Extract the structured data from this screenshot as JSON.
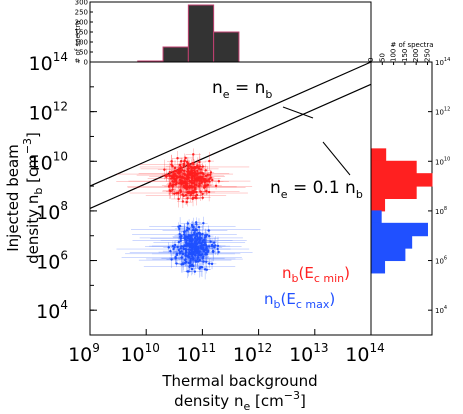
{
  "chart_data": {
    "type": "scatter",
    "xlabel_line1": "Thermal background",
    "xlabel_line2_main": "density n",
    "xlabel_line2_sub": "e",
    "xlabel_line2_unit": "[cm",
    "xlabel_line2_exp": "−3",
    "xlabel_line2_close": "]",
    "ylabel_line1": "Injected beam",
    "ylabel_line2_main": "density n",
    "ylabel_line2_sub": "b",
    "ylabel_line2_unit": "[cm",
    "ylabel_line2_exp": "−3",
    "ylabel_line2_close": "]",
    "x_log": true,
    "y_log": true,
    "xlim": [
      1000000000.0,
      100000000000000.0
    ],
    "ylim": [
      1000.0,
      100000000000000.0
    ],
    "x_ticks": [
      {
        "base": "10",
        "exp": "9",
        "v": 9
      },
      {
        "base": "10",
        "exp": "10",
        "v": 10
      },
      {
        "base": "10",
        "exp": "11",
        "v": 11
      },
      {
        "base": "10",
        "exp": "12",
        "v": 12
      },
      {
        "base": "10",
        "exp": "13",
        "v": 13
      },
      {
        "base": "10",
        "exp": "14",
        "v": 14
      }
    ],
    "y_ticks": [
      {
        "base": "10",
        "exp": "4",
        "v": 4
      },
      {
        "base": "10",
        "exp": "6",
        "v": 6
      },
      {
        "base": "10",
        "exp": "8",
        "v": 8
      },
      {
        "base": "10",
        "exp": "10",
        "v": 10
      },
      {
        "base": "10",
        "exp": "12",
        "v": 12
      },
      {
        "base": "10",
        "exp": "14",
        "v": 14
      }
    ],
    "right_y_ticks": [
      {
        "base": "10",
        "exp": "4",
        "v": 4
      },
      {
        "base": "10",
        "exp": "6",
        "v": 6
      },
      {
        "base": "10",
        "exp": "8",
        "v": 8
      },
      {
        "base": "10",
        "exp": "10",
        "v": 10
      },
      {
        "base": "10",
        "exp": "12",
        "v": 12
      },
      {
        "base": "10",
        "exp": "14",
        "v": 14
      }
    ],
    "reference_lines": [
      {
        "label_main": "n",
        "label_sub1": "e",
        "label_mid": " = n",
        "label_sub2": "b",
        "ratio": 1
      },
      {
        "label_main": "n",
        "label_sub1": "e",
        "label_mid": " = 0.1 n",
        "label_sub2": "b",
        "ratio": 0.1
      }
    ],
    "series": [
      {
        "name_main": "n",
        "name_sub": "b",
        "name_paren": "(E",
        "name_psub": "c min",
        "name_close": ")",
        "color": "#ff2020",
        "cloud": {
          "x": [
            10.0,
            11.5
          ],
          "y": [
            7.8,
            10.7
          ],
          "count": 300
        }
      },
      {
        "name_main": "n",
        "name_sub": "b",
        "name_paren": "(E",
        "name_psub": "c max",
        "name_close": ")",
        "color": "#2050ff",
        "cloud": {
          "x": [
            10.2,
            11.5
          ],
          "y": [
            4.8,
            8.2
          ],
          "count": 300
        }
      }
    ],
    "top_histogram": {
      "ylabel": "# of spectra",
      "ticks": [
        "0",
        "50",
        "100",
        "150",
        "200",
        "250",
        "300"
      ],
      "ymax": 300,
      "color": "#333333",
      "bins": [
        {
          "x0": 9.85,
          "x1": 10.3,
          "count": 5
        },
        {
          "x0": 10.3,
          "x1": 10.75,
          "count": 75
        },
        {
          "x0": 10.75,
          "x1": 11.2,
          "count": 285
        },
        {
          "x0": 11.2,
          "x1": 11.65,
          "count": 150
        }
      ]
    },
    "right_histogram": {
      "xlabel": "# of spectra",
      "ticks": [
        "0",
        "50",
        "100",
        "150",
        "200",
        "250"
      ],
      "xmax": 270,
      "red_bins": [
        {
          "y0": 10.0,
          "y1": 10.5,
          "count": 65
        },
        {
          "y0": 9.5,
          "y1": 10.0,
          "count": 200
        },
        {
          "y0": 9.0,
          "y1": 9.5,
          "count": 270
        },
        {
          "y0": 8.5,
          "y1": 9.0,
          "count": 200
        },
        {
          "y0": 8.0,
          "y1": 8.5,
          "count": 60
        }
      ],
      "blue_bins": [
        {
          "y0": 7.5,
          "y1": 8.0,
          "count": 45
        },
        {
          "y0": 7.0,
          "y1": 7.5,
          "count": 250
        },
        {
          "y0": 6.5,
          "y1": 7.0,
          "count": 180
        },
        {
          "y0": 6.0,
          "y1": 6.5,
          "count": 150
        },
        {
          "y0": 5.5,
          "y1": 6.0,
          "count": 60
        }
      ]
    }
  }
}
